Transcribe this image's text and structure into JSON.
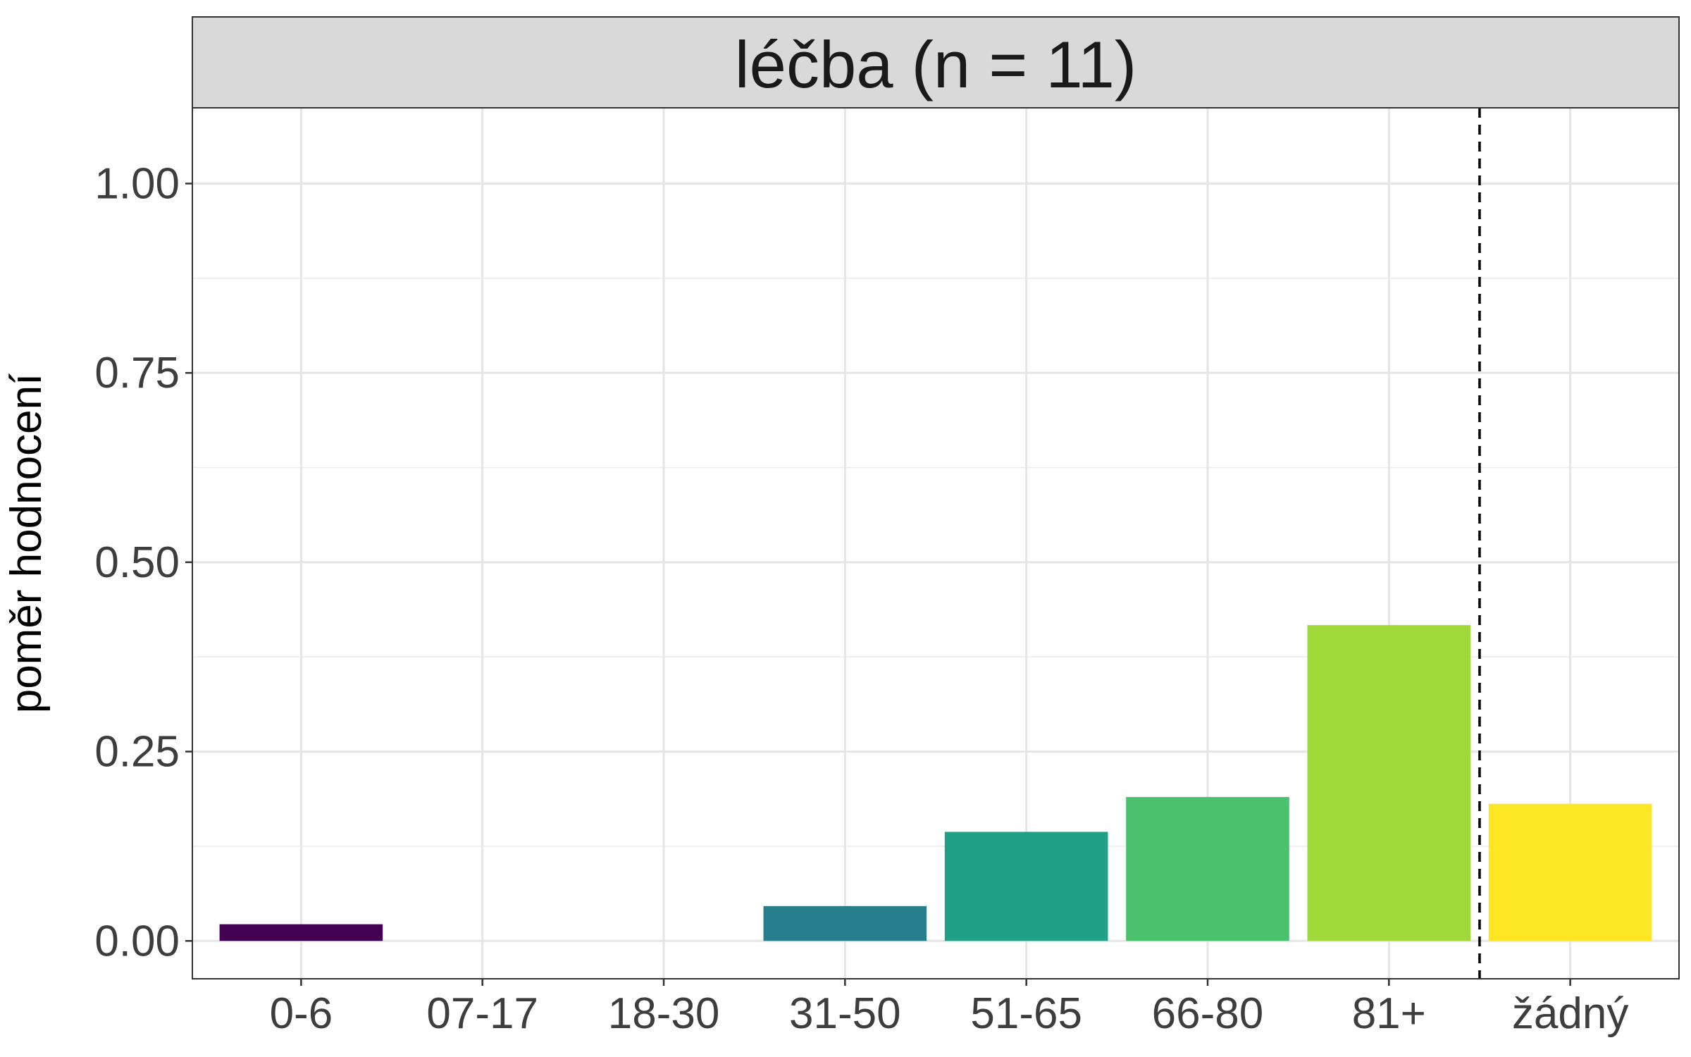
{
  "chart_data": {
    "type": "bar",
    "facet_title": "léčba (n = 11)",
    "ylabel": "poměr hodnocení",
    "xlabel": "",
    "categories": [
      "0-6",
      "07-17",
      "18-30",
      "31-50",
      "51-65",
      "66-80",
      "81+",
      "žádný"
    ],
    "values": [
      0.022,
      0.0,
      0.0,
      0.046,
      0.144,
      0.19,
      0.417,
      0.181
    ],
    "colors": [
      "#440154",
      "#46337E",
      "#365C8D",
      "#277F8E",
      "#1FA187",
      "#4AC16D",
      "#9FDA3A",
      "#FDE725"
    ],
    "ylim": [
      -0.05,
      1.1
    ],
    "yticks": [
      0.0,
      0.25,
      0.5,
      0.75,
      1.0
    ],
    "ytick_labels": [
      "0.00",
      "0.25",
      "0.50",
      "0.75",
      "1.00"
    ],
    "reference_line": {
      "style": "dashed",
      "between": [
        "81+",
        "žádný"
      ]
    },
    "grid": true,
    "legend": "none"
  }
}
